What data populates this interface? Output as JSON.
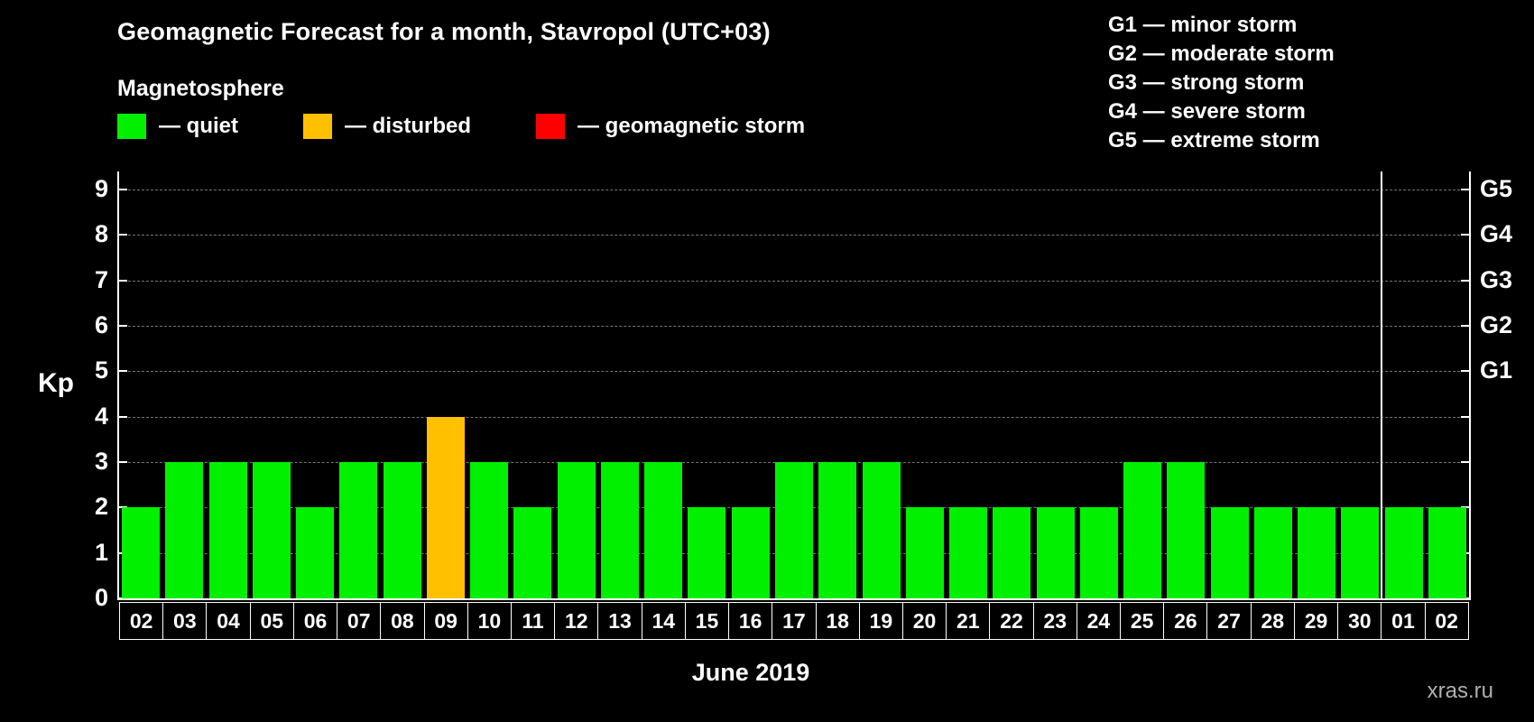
{
  "title": "Geomagnetic Forecast for a month, Stavropol (UTC+03)",
  "subtitle": "Magnetosphere",
  "legend": {
    "quiet": "— quiet",
    "disturbed": "— disturbed",
    "storm": "— geomagnetic storm"
  },
  "storm_scale": [
    "G1 — minor storm",
    "G2 — moderate storm",
    "G3 — strong storm",
    "G4 — severe storm",
    "G5 — extreme storm"
  ],
  "colors": {
    "quiet": "#00f000",
    "disturbed": "#ffc000",
    "storm": "#ff0000"
  },
  "axis": {
    "y_label": "Kp",
    "y_ticks": [
      0,
      1,
      2,
      3,
      4,
      5,
      6,
      7,
      8,
      9
    ],
    "right_labels": [
      {
        "kp": 9,
        "label": "G5"
      },
      {
        "kp": 8,
        "label": "G4"
      },
      {
        "kp": 7,
        "label": "G3"
      },
      {
        "kp": 6,
        "label": "G2"
      },
      {
        "kp": 5,
        "label": "G1"
      }
    ],
    "x_label": "June 2019"
  },
  "watermark": "xras.ru",
  "chart_data": {
    "type": "bar",
    "title": "Geomagnetic Forecast for a month, Stavropol (UTC+03)",
    "xlabel": "June 2019",
    "ylabel": "Kp",
    "ylim": [
      0,
      9
    ],
    "grid": "dashed horizontal lines at each Kp level",
    "legend_position": "top",
    "categories": [
      "02",
      "03",
      "04",
      "05",
      "06",
      "07",
      "08",
      "09",
      "10",
      "11",
      "12",
      "13",
      "14",
      "15",
      "16",
      "17",
      "18",
      "19",
      "20",
      "21",
      "22",
      "23",
      "24",
      "25",
      "26",
      "27",
      "28",
      "29",
      "30",
      "01",
      "02"
    ],
    "values": [
      2,
      3,
      3,
      3,
      2,
      3,
      3,
      4,
      3,
      2,
      3,
      3,
      3,
      2,
      2,
      3,
      3,
      3,
      2,
      2,
      2,
      2,
      2,
      3,
      3,
      2,
      2,
      2,
      2,
      2,
      2
    ],
    "statuses": [
      "quiet",
      "quiet",
      "quiet",
      "quiet",
      "quiet",
      "quiet",
      "quiet",
      "disturbed",
      "quiet",
      "quiet",
      "quiet",
      "quiet",
      "quiet",
      "quiet",
      "quiet",
      "quiet",
      "quiet",
      "quiet",
      "quiet",
      "quiet",
      "quiet",
      "quiet",
      "quiet",
      "quiet",
      "quiet",
      "quiet",
      "quiet",
      "quiet",
      "quiet",
      "quiet",
      "quiet"
    ],
    "month_boundary_after_index": 28
  }
}
